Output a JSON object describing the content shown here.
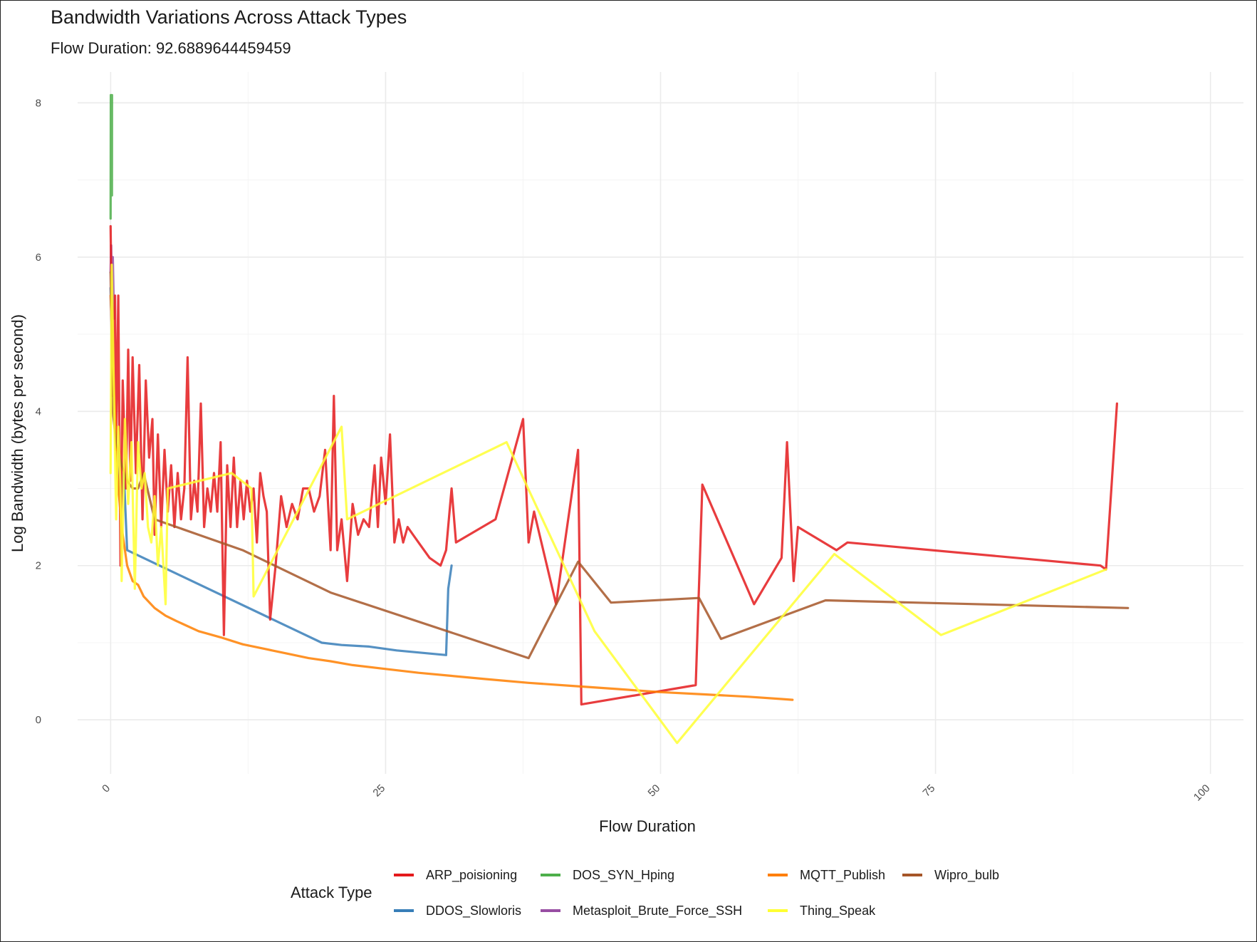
{
  "chart_data": {
    "type": "line",
    "title": "Bandwidth Variations Across Attack Types",
    "subtitle": "Flow Duration: 92.6889644459459",
    "xlabel": "Flow Duration",
    "ylabel": "Log Bandwidth (bytes per second)",
    "xlim": [
      -3,
      103
    ],
    "ylim": [
      -0.7,
      8.4
    ],
    "x_ticks": [
      0,
      25,
      50,
      75,
      100
    ],
    "x_tick_labels": [
      "0",
      "25",
      "50",
      "75",
      "100"
    ],
    "y_ticks": [
      0,
      2,
      4,
      6,
      8
    ],
    "y_tick_labels": [
      "0",
      "2",
      "4",
      "6",
      "8"
    ],
    "grid": true,
    "legend": {
      "title": "Attack Type",
      "position": "bottom",
      "columns": [
        [
          "ARP_poisioning",
          "DDOS_Slowloris"
        ],
        [
          "DOS_SYN_Hping",
          "Metasploit_Brute_Force_SSH"
        ],
        [
          "MQTT_Publish",
          "Thing_Speak"
        ],
        [
          "Wipro_bulb"
        ]
      ]
    },
    "series": [
      {
        "name": "DOS_SYN_Hping",
        "color": "#4daf4a",
        "points": [
          [
            0.0,
            6.5
          ],
          [
            0.02,
            8.1
          ],
          [
            0.03,
            7.2
          ],
          [
            0.04,
            8.0
          ],
          [
            0.05,
            7.6
          ],
          [
            0.06,
            8.1
          ],
          [
            0.08,
            7.4
          ],
          [
            0.1,
            7.9
          ],
          [
            0.12,
            6.8
          ],
          [
            0.13,
            8.1
          ]
        ]
      },
      {
        "name": "Metasploit_Brute_Force_SSH",
        "color": "#984ea3",
        "points": [
          [
            0.0,
            5.8
          ],
          [
            0.05,
            6.15
          ],
          [
            0.1,
            5.5
          ],
          [
            0.2,
            6.0
          ],
          [
            0.3,
            5.2
          ]
        ]
      },
      {
        "name": "DDOS_Slowloris",
        "color": "#377eb8",
        "points": [
          [
            0.0,
            5.6
          ],
          [
            0.3,
            4.0
          ],
          [
            0.6,
            3.5
          ],
          [
            0.9,
            2.7
          ],
          [
            1.2,
            3.2
          ],
          [
            1.5,
            2.2
          ],
          [
            19.2,
            1.0
          ],
          [
            21,
            0.97
          ],
          [
            23.5,
            0.95
          ],
          [
            26,
            0.9
          ],
          [
            30.5,
            0.84
          ],
          [
            30.7,
            1.7
          ],
          [
            31.0,
            2.0
          ]
        ]
      },
      {
        "name": "ARP_poisioning",
        "color": "#e41a1c",
        "points": [
          [
            0.0,
            6.4
          ],
          [
            0.2,
            4.2
          ],
          [
            0.4,
            5.5
          ],
          [
            0.5,
            3.5
          ],
          [
            0.7,
            5.5
          ],
          [
            0.9,
            2.0
          ],
          [
            1.1,
            4.4
          ],
          [
            1.4,
            3.0
          ],
          [
            1.6,
            4.8
          ],
          [
            1.8,
            3.1
          ],
          [
            2.0,
            4.7
          ],
          [
            2.3,
            3.2
          ],
          [
            2.6,
            4.6
          ],
          [
            2.9,
            2.6
          ],
          [
            3.2,
            4.4
          ],
          [
            3.5,
            3.4
          ],
          [
            3.8,
            3.9
          ],
          [
            4.0,
            2.4
          ],
          [
            4.3,
            3.7
          ],
          [
            4.6,
            2.5
          ],
          [
            4.9,
            3.5
          ],
          [
            5.2,
            2.7
          ],
          [
            5.5,
            3.3
          ],
          [
            5.8,
            2.5
          ],
          [
            6.1,
            3.2
          ],
          [
            6.4,
            2.6
          ],
          [
            6.7,
            3.0
          ],
          [
            7.0,
            4.7
          ],
          [
            7.3,
            2.6
          ],
          [
            7.6,
            3.1
          ],
          [
            7.9,
            2.7
          ],
          [
            8.2,
            4.1
          ],
          [
            8.5,
            2.5
          ],
          [
            8.8,
            3.0
          ],
          [
            9.1,
            2.7
          ],
          [
            9.4,
            3.2
          ],
          [
            9.7,
            2.7
          ],
          [
            10.0,
            3.6
          ],
          [
            10.3,
            1.1
          ],
          [
            10.6,
            3.3
          ],
          [
            10.9,
            2.5
          ],
          [
            11.2,
            3.4
          ],
          [
            11.5,
            2.5
          ],
          [
            11.8,
            3.1
          ],
          [
            12.1,
            2.6
          ],
          [
            12.4,
            3.1
          ],
          [
            12.7,
            2.7
          ],
          [
            13.0,
            3.0
          ],
          [
            13.3,
            2.3
          ],
          [
            13.6,
            3.2
          ],
          [
            13.9,
            2.9
          ],
          [
            14.2,
            2.7
          ],
          [
            14.5,
            1.3
          ],
          [
            15.0,
            2.0
          ],
          [
            15.5,
            2.9
          ],
          [
            16.0,
            2.5
          ],
          [
            16.5,
            2.8
          ],
          [
            17.0,
            2.6
          ],
          [
            17.5,
            3.0
          ],
          [
            18.0,
            3.0
          ],
          [
            18.5,
            2.7
          ],
          [
            19.0,
            2.9
          ],
          [
            19.5,
            3.5
          ],
          [
            20.0,
            2.2
          ],
          [
            20.3,
            4.2
          ],
          [
            20.6,
            2.2
          ],
          [
            21.0,
            2.6
          ],
          [
            21.5,
            1.8
          ],
          [
            22.0,
            2.8
          ],
          [
            22.5,
            2.4
          ],
          [
            23.0,
            2.6
          ],
          [
            23.5,
            2.5
          ],
          [
            24.0,
            3.3
          ],
          [
            24.3,
            2.5
          ],
          [
            24.6,
            3.4
          ],
          [
            25.0,
            2.8
          ],
          [
            25.4,
            3.7
          ],
          [
            25.8,
            2.3
          ],
          [
            26.2,
            2.6
          ],
          [
            26.6,
            2.3
          ],
          [
            27.0,
            2.5
          ],
          [
            27.5,
            2.4
          ],
          [
            28.0,
            2.3
          ],
          [
            29.0,
            2.1
          ],
          [
            30.0,
            2.0
          ],
          [
            30.5,
            2.2
          ],
          [
            31.0,
            3.0
          ],
          [
            31.4,
            2.3
          ],
          [
            35.0,
            2.6
          ],
          [
            37.5,
            3.9
          ],
          [
            38.0,
            2.3
          ],
          [
            38.5,
            2.7
          ],
          [
            40.5,
            1.5
          ],
          [
            42.5,
            3.5
          ],
          [
            42.8,
            0.2
          ],
          [
            53.2,
            0.45
          ],
          [
            53.8,
            3.05
          ],
          [
            58.5,
            1.5
          ],
          [
            61.0,
            2.1
          ],
          [
            61.5,
            3.6
          ],
          [
            62.1,
            1.8
          ],
          [
            62.5,
            2.5
          ],
          [
            66.0,
            2.2
          ],
          [
            67.0,
            2.3
          ],
          [
            90.0,
            2.0
          ],
          [
            90.5,
            1.95
          ],
          [
            91.5,
            4.1
          ]
        ]
      },
      {
        "name": "MQTT_Publish",
        "color": "#ff7f00",
        "points": [
          [
            0.0,
            5.5
          ],
          [
            0.3,
            4.3
          ],
          [
            0.6,
            3.2
          ],
          [
            1.0,
            2.5
          ],
          [
            1.5,
            2.0
          ],
          [
            2.0,
            1.8
          ],
          [
            2.5,
            1.75
          ],
          [
            3.0,
            1.6
          ],
          [
            4.0,
            1.45
          ],
          [
            5.0,
            1.35
          ],
          [
            6.0,
            1.28
          ],
          [
            8.0,
            1.15
          ],
          [
            10.0,
            1.07
          ],
          [
            12.0,
            0.98
          ],
          [
            14.0,
            0.92
          ],
          [
            16.0,
            0.86
          ],
          [
            18.0,
            0.8
          ],
          [
            20.0,
            0.76
          ],
          [
            22.0,
            0.71
          ],
          [
            25.0,
            0.66
          ],
          [
            28.0,
            0.61
          ],
          [
            31.0,
            0.57
          ],
          [
            34.0,
            0.53
          ],
          [
            38.0,
            0.48
          ],
          [
            42.0,
            0.44
          ],
          [
            46.0,
            0.4
          ],
          [
            50.0,
            0.36
          ],
          [
            54.0,
            0.33
          ],
          [
            58.0,
            0.3
          ],
          [
            61.0,
            0.27
          ],
          [
            62.0,
            0.26
          ]
        ]
      },
      {
        "name": "Wipro_bulb",
        "color": "#a65628",
        "points": [
          [
            0.0,
            5.8
          ],
          [
            0.2,
            4.0
          ],
          [
            0.5,
            3.6
          ],
          [
            1.0,
            3.3
          ],
          [
            1.5,
            3.1
          ],
          [
            2.0,
            3.0
          ],
          [
            2.5,
            3.0
          ],
          [
            3.0,
            3.2
          ],
          [
            4.0,
            2.6
          ],
          [
            5.0,
            2.55
          ],
          [
            8.0,
            2.4
          ],
          [
            12.0,
            2.2
          ],
          [
            20.0,
            1.65
          ],
          [
            38.0,
            0.8
          ],
          [
            42.5,
            2.05
          ],
          [
            45.5,
            1.52
          ],
          [
            53.5,
            1.58
          ],
          [
            55.5,
            1.05
          ],
          [
            65.0,
            1.55
          ],
          [
            92.5,
            1.45
          ]
        ]
      },
      {
        "name": "Thing_Speak",
        "color": "#ffff33",
        "points": [
          [
            0.0,
            3.2
          ],
          [
            0.1,
            5.9
          ],
          [
            0.3,
            4.2
          ],
          [
            0.5,
            2.6
          ],
          [
            0.7,
            3.8
          ],
          [
            0.9,
            3.0
          ],
          [
            1.0,
            1.8
          ],
          [
            1.3,
            3.9
          ],
          [
            1.6,
            2.8
          ],
          [
            1.9,
            3.6
          ],
          [
            2.2,
            1.7
          ],
          [
            2.5,
            3.6
          ],
          [
            2.8,
            3.0
          ],
          [
            3.1,
            3.2
          ],
          [
            3.4,
            2.5
          ],
          [
            3.7,
            2.3
          ],
          [
            4.0,
            2.9
          ],
          [
            4.3,
            2.0
          ],
          [
            4.6,
            2.5
          ],
          [
            5.0,
            1.5
          ],
          [
            5.2,
            3.0
          ],
          [
            11.0,
            3.2
          ],
          [
            12.8,
            3.0
          ],
          [
            13.0,
            1.6
          ],
          [
            21.0,
            3.8
          ],
          [
            21.5,
            2.6
          ],
          [
            36.0,
            3.6
          ],
          [
            44.0,
            1.15
          ],
          [
            51.5,
            -0.3
          ],
          [
            65.8,
            2.15
          ],
          [
            75.5,
            1.1
          ],
          [
            90.5,
            1.95
          ]
        ]
      }
    ]
  }
}
